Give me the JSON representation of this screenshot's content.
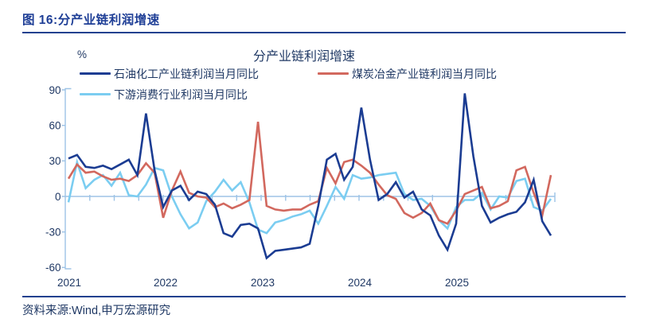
{
  "header": {
    "title": "图 16:分产业链利润增速"
  },
  "chart": {
    "title": "分产业链利润增速",
    "unit_label": "%",
    "legend": [
      {
        "label": "石油化工产业链利润当月同比",
        "color": "#1b3c92"
      },
      {
        "label": "煤炭冶金产业链利润当月同比",
        "color": "#d2685e"
      },
      {
        "label": "下游消费行业利润当月同比",
        "color": "#7bcdf1"
      }
    ],
    "y_axis": {
      "labels": [
        "90",
        "60",
        "30",
        "0",
        "-30",
        "-60"
      ]
    },
    "x_axis": {
      "labels": [
        "2021",
        "2022",
        "2023",
        "2024",
        "2025"
      ]
    },
    "axis_color": "#9dc3e6",
    "text_color": "#1f3864"
  },
  "chart_data": {
    "type": "line",
    "title": "分产业链利润增速",
    "ylabel": "%",
    "ylim": [
      -60,
      90
    ],
    "y_ticks": [
      90,
      60,
      30,
      0,
      -30,
      -60
    ],
    "x_description": "monthly, 2021-02 to 2025-10, year ticks at 2021/2022/2023/2024/2025",
    "grid": false,
    "legend_position": "top-left, two rows",
    "series": [
      {
        "name": "石油化工产业链利润当月同比",
        "key": "petrochemical-chain",
        "color": "#1b3c92",
        "values": [
          32,
          35,
          25,
          24,
          26,
          23,
          27,
          31,
          18,
          70,
          22,
          -9,
          5,
          9,
          -3,
          4,
          2,
          -7,
          -31,
          -34,
          -24,
          -23,
          -27,
          -52,
          -46,
          -45,
          -44,
          -43,
          -40,
          -8,
          31,
          36,
          14,
          25,
          75,
          31,
          -3,
          2,
          12,
          -1,
          4,
          -11,
          -16,
          -33,
          -45,
          -23,
          87,
          34,
          -8,
          -22,
          -18,
          -15,
          -13,
          -5,
          14,
          -21,
          -33
        ]
      },
      {
        "name": "煤炭冶金产业链利润当月同比",
        "key": "coal-metallurgy-chain",
        "color": "#d2685e",
        "values": [
          15,
          27,
          20,
          21,
          17,
          14,
          15,
          13,
          18,
          28,
          20,
          -18,
          5,
          21,
          3,
          0,
          -1,
          -9,
          -6,
          -10,
          -7,
          -3,
          63,
          -8,
          -11,
          -12,
          -11,
          -11,
          -7,
          -4,
          24,
          11,
          29,
          31,
          26,
          20,
          10,
          1,
          -2,
          -14,
          -18,
          -14,
          -6,
          -20,
          -23,
          -12,
          2,
          5,
          8,
          -10,
          -8,
          -4,
          22,
          25,
          3,
          -16,
          18
        ]
      },
      {
        "name": "下游消费行业利润当月同比",
        "key": "downstream-consumer",
        "color": "#7bcdf1",
        "values": [
          -5,
          29,
          7,
          14,
          18,
          9,
          20,
          1,
          0,
          10,
          24,
          22,
          0,
          -15,
          -27,
          -22,
          -4,
          4,
          14,
          5,
          12,
          -5,
          -28,
          -31,
          -22,
          -20,
          -17,
          -15,
          -12,
          -23,
          -8,
          8,
          -2,
          18,
          15,
          16,
          18,
          19,
          20,
          2,
          -3,
          -2,
          -8,
          -20,
          -27,
          -9,
          -3,
          -3,
          3,
          -11,
          0,
          -1,
          13,
          15,
          -9,
          -12,
          -2
        ]
      }
    ]
  },
  "footer": {
    "source": "资料来源:Wind,申万宏源研究"
  }
}
